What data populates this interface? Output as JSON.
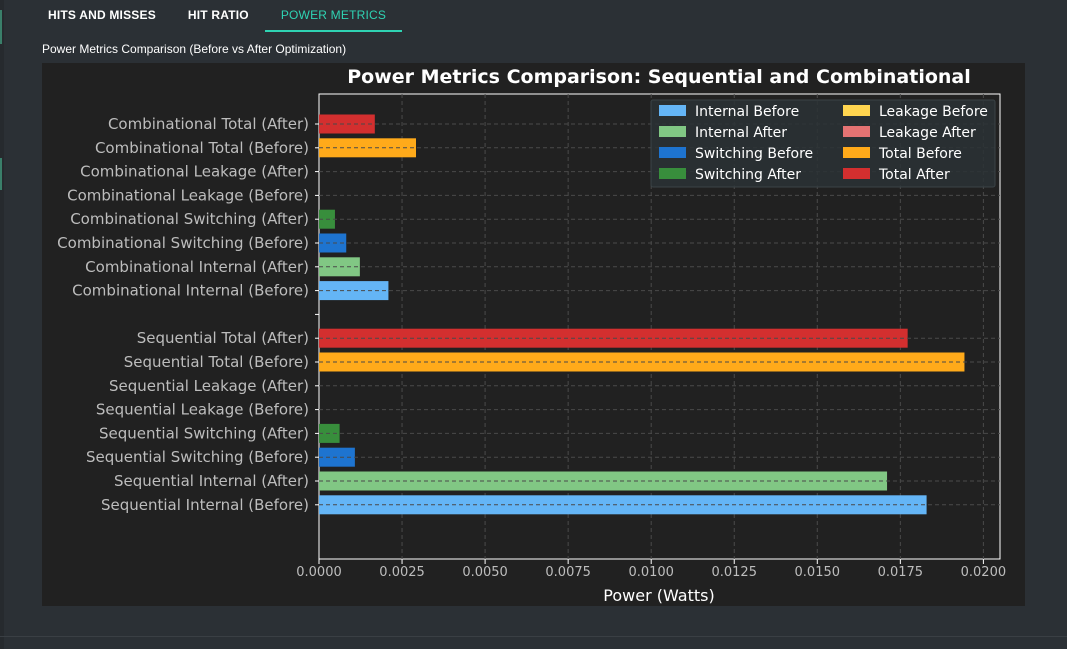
{
  "tabs": [
    {
      "label": "HITS AND MISSES",
      "active": false
    },
    {
      "label": "HIT RATIO",
      "active": false
    },
    {
      "label": "POWER METRICS",
      "active": true
    }
  ],
  "page": {
    "subtitle": "Power Metrics Comparison (Before vs After Optimization)"
  },
  "colors": {
    "accent": "#2fd3b3",
    "panel_bg": "#212121",
    "page_bg": "#2b3035"
  },
  "chart_data": {
    "type": "bar",
    "orientation": "horizontal",
    "title": "Power Metrics Comparison: Sequential and Combinational",
    "xlabel": "Power (Watts)",
    "ylabel": "",
    "xlim": [
      0,
      0.0205
    ],
    "x_ticks": [
      "0.0000",
      "0.0025",
      "0.0050",
      "0.0075",
      "0.0100",
      "0.0125",
      "0.0150",
      "0.0175",
      "0.0200"
    ],
    "grid": true,
    "legend_position": "top-right",
    "legend_columns": 2,
    "series": [
      {
        "name": "Internal Before",
        "color": "#64b5f6"
      },
      {
        "name": "Internal After",
        "color": "#81c784"
      },
      {
        "name": "Switching Before",
        "color": "#1e74d0"
      },
      {
        "name": "Switching After",
        "color": "#388e3c"
      },
      {
        "name": "Leakage Before",
        "color": "#ffd54f"
      },
      {
        "name": "Leakage After",
        "color": "#e57373"
      },
      {
        "name": "Total Before",
        "color": "#ffaa1a"
      },
      {
        "name": "Total After",
        "color": "#d32f2f"
      }
    ],
    "groups": [
      {
        "name": "Combinational",
        "bars": [
          {
            "label": "Combinational Total (After)",
            "series": "Total After",
            "value": 0.00168
          },
          {
            "label": "Combinational Total (Before)",
            "series": "Total Before",
            "value": 0.00292
          },
          {
            "label": "Combinational Leakage (After)",
            "series": "Leakage After",
            "value": 0.0
          },
          {
            "label": "Combinational Leakage (Before)",
            "series": "Leakage Before",
            "value": 0.0
          },
          {
            "label": "Combinational Switching (After)",
            "series": "Switching After",
            "value": 0.00048
          },
          {
            "label": "Combinational Switching (Before)",
            "series": "Switching Before",
            "value": 0.00082
          },
          {
            "label": "Combinational Internal (After)",
            "series": "Internal After",
            "value": 0.00123
          },
          {
            "label": "Combinational Internal (Before)",
            "series": "Internal Before",
            "value": 0.00209
          }
        ]
      },
      {
        "name": "Sequential",
        "bars": [
          {
            "label": "Sequential Total (After)",
            "series": "Total After",
            "value": 0.01772
          },
          {
            "label": "Sequential Total (Before)",
            "series": "Total Before",
            "value": 0.01943
          },
          {
            "label": "Sequential Leakage (After)",
            "series": "Leakage After",
            "value": 0.0
          },
          {
            "label": "Sequential Leakage (Before)",
            "series": "Leakage Before",
            "value": 0.0
          },
          {
            "label": "Sequential Switching (After)",
            "series": "Switching After",
            "value": 0.00062
          },
          {
            "label": "Sequential Switching (Before)",
            "series": "Switching Before",
            "value": 0.00108
          },
          {
            "label": "Sequential Internal (After)",
            "series": "Internal After",
            "value": 0.0171
          },
          {
            "label": "Sequential Internal (Before)",
            "series": "Internal Before",
            "value": 0.01829
          }
        ]
      }
    ]
  }
}
